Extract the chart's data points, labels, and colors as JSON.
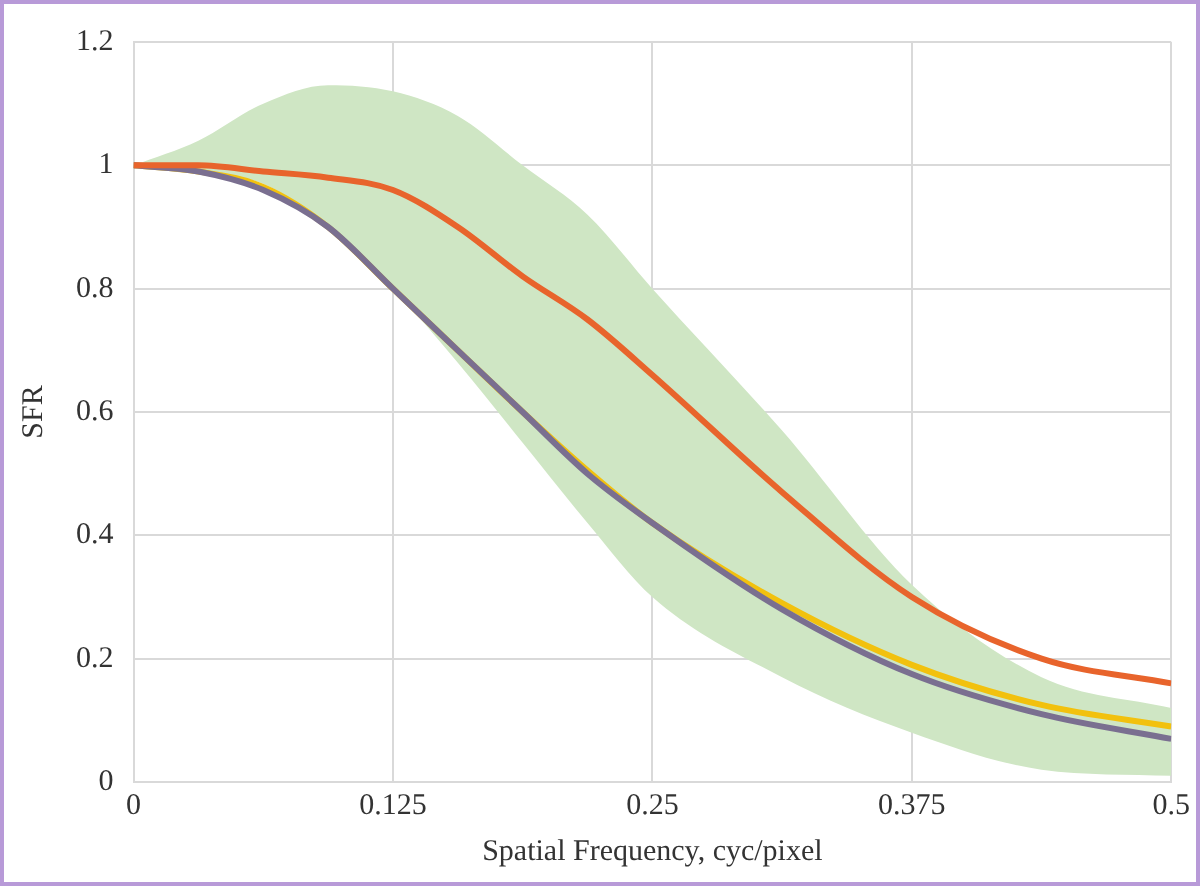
{
  "chart_data": {
    "type": "line",
    "xlabel": "Spatial Frequency, cyc/pixel",
    "ylabel": "SFR",
    "x": [
      0,
      0.03125,
      0.0625,
      0.09375,
      0.125,
      0.15625,
      0.1875,
      0.21875,
      0.25,
      0.3125,
      0.375,
      0.4375,
      0.5
    ],
    "series": [
      {
        "type": "area",
        "color": "#cfe6c4",
        "values": [
          null,
          null,
          null,
          null,
          null,
          null,
          null,
          null,
          null,
          null,
          null,
          null,
          null
        ],
        "lower": [
          1,
          0.99,
          0.97,
          0.9,
          0.8,
          0.68,
          0.55,
          0.42,
          0.3,
          0.17,
          0.08,
          0.02,
          0.01
        ],
        "upper": [
          1,
          1.04,
          1.1,
          1.13,
          1.12,
          1.08,
          1,
          0.92,
          0.8,
          0.57,
          0.32,
          0.17,
          0.12
        ]
      },
      {
        "color": "#e8642c",
        "values": [
          1,
          1,
          0.99,
          0.98,
          0.96,
          0.9,
          0.82,
          0.75,
          0.66,
          0.47,
          0.3,
          0.2,
          0.16
        ]
      },
      {
        "color": "#7a6f90",
        "values": [
          1,
          0.99,
          0.96,
          0.9,
          0.8,
          0.7,
          0.6,
          0.5,
          0.42,
          0.28,
          0.175,
          0.11,
          0.07
        ]
      },
      {
        "color": "#f2c10e",
        "values": [
          1,
          0.99,
          0.965,
          0.9,
          0.8,
          0.7,
          0.6,
          0.505,
          0.42,
          0.29,
          0.19,
          0.125,
          0.09
        ]
      }
    ],
    "xlim": [
      0,
      0.5
    ],
    "xticks": [
      0,
      0.125,
      0.25,
      0.375,
      0.5
    ],
    "ylim": [
      0,
      1.2
    ],
    "yticks": [
      0,
      0.2,
      0.4,
      0.6,
      0.8,
      1,
      1.2
    ],
    "grid": true,
    "legend": false,
    "line_style": "solid",
    "marker": "none"
  }
}
